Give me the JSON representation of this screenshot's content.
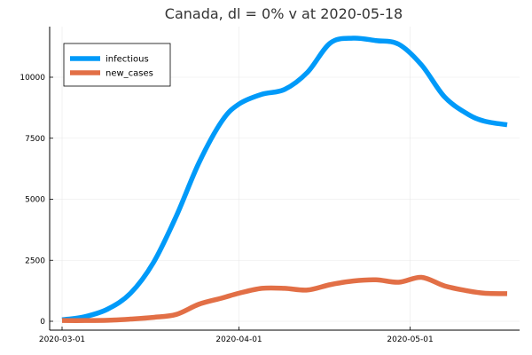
{
  "chart_data": {
    "type": "line",
    "title": "Canada,  dl = 0% v at 2020-05-18",
    "xlabel": "",
    "ylabel": "",
    "x_ticks": [
      "2020-03-01",
      "2020-04-01",
      "2020-05-01"
    ],
    "y_ticks": [
      0,
      2500,
      5000,
      7500,
      10000
    ],
    "ylim": [
      -350,
      12000
    ],
    "xlim": [
      "2020-03-01",
      "2020-05-18"
    ],
    "grid": true,
    "legend_position": "top-left",
    "x": [
      "2020-03-01",
      "2020-03-05",
      "2020-03-09",
      "2020-03-13",
      "2020-03-17",
      "2020-03-21",
      "2020-03-25",
      "2020-03-29",
      "2020-04-01",
      "2020-04-05",
      "2020-04-09",
      "2020-04-13",
      "2020-04-17",
      "2020-04-21",
      "2020-04-25",
      "2020-04-29",
      "2020-05-03",
      "2020-05-07",
      "2020-05-11",
      "2020-05-14",
      "2020-05-18"
    ],
    "series": [
      {
        "name": "infectious",
        "color": "#009af9",
        "values": [
          60,
          190,
          500,
          1150,
          2400,
          4300,
          6500,
          8200,
          8900,
          9300,
          9500,
          10200,
          11400,
          11600,
          11500,
          11350,
          10500,
          9200,
          8500,
          8200,
          8050
        ]
      },
      {
        "name": "new_cases",
        "color": "#e26f46",
        "values": [
          30,
          30,
          40,
          90,
          160,
          280,
          700,
          950,
          1150,
          1350,
          1350,
          1280,
          1500,
          1650,
          1700,
          1600,
          1800,
          1450,
          1250,
          1150,
          1130
        ]
      }
    ]
  }
}
